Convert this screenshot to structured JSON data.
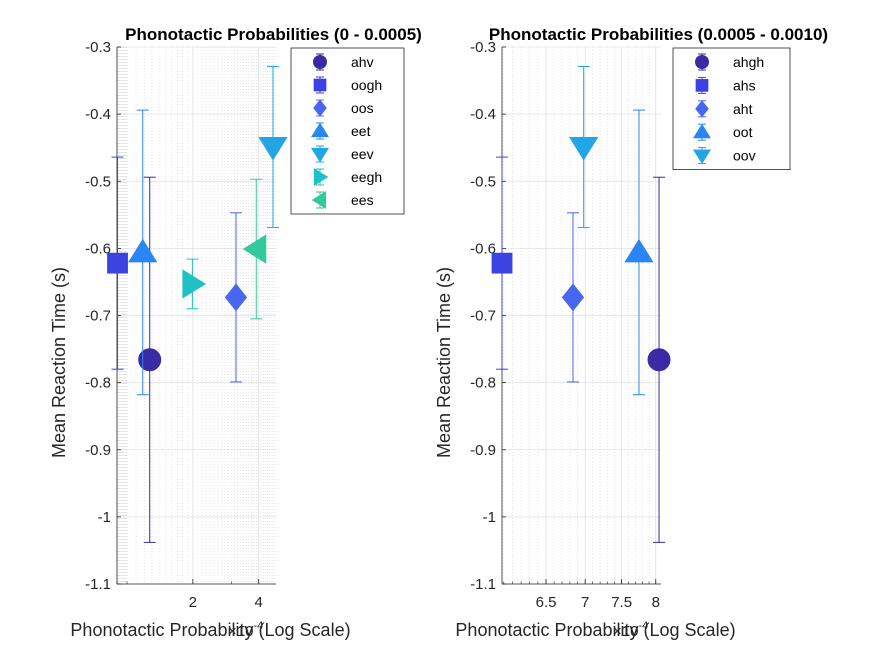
{
  "chart_data": [
    {
      "type": "scatter",
      "title": "Phonotactic Probabilities (0 - 0.0005)",
      "xlabel": "Phonotactic Probability (Log Scale)",
      "ylabel": "Mean Reaction Time (s)",
      "xscale": "log",
      "x_exponent_label": "×10",
      "x_exponent": "-4",
      "xlim": [
        9e-05,
        0.00048
      ],
      "ylim": [
        -1.1,
        -0.3
      ],
      "xticks": [
        0.0002,
        0.0004
      ],
      "xtick_labels": [
        "2",
        "4"
      ],
      "yticks": [
        -1.1,
        -1.0,
        -0.9,
        -0.8,
        -0.7,
        -0.6,
        -0.5,
        -0.4,
        -0.3
      ],
      "ytick_labels": [
        "-1.1",
        "-1",
        "-0.9",
        "-0.8",
        "-0.7",
        "-0.6",
        "-0.5",
        "-0.4",
        "-0.3"
      ],
      "grid": true,
      "legend_position": "top-right",
      "series": [
        {
          "name": "ahv",
          "marker": "circle",
          "color": "#3a2aa3",
          "x": 0.000127,
          "y": -0.766,
          "err": 0.272
        },
        {
          "name": "oogh",
          "marker": "square",
          "color": "#3b43e0",
          "x": 9.05e-05,
          "y": -0.622,
          "err": 0.158
        },
        {
          "name": "oos",
          "marker": "diamond",
          "color": "#4767f0",
          "x": 0.000315,
          "y": -0.673,
          "err": 0.126
        },
        {
          "name": "eet",
          "marker": "triangle-up",
          "color": "#2b86f5",
          "x": 0.000118,
          "y": -0.606,
          "err": 0.212
        },
        {
          "name": "eev",
          "marker": "triangle-down",
          "color": "#22a5e5",
          "x": 0.000465,
          "y": -0.449,
          "err": 0.12
        },
        {
          "name": "eegh",
          "marker": "triangle-right",
          "color": "#1fc1c6",
          "x": 0.000199,
          "y": -0.653,
          "err": 0.037
        },
        {
          "name": "ees",
          "marker": "triangle-left",
          "color": "#34c99a",
          "x": 0.00039,
          "y": -0.601,
          "err": 0.104
        }
      ]
    },
    {
      "type": "scatter",
      "title": "Phonotactic Probabilities (0.0005 - 0.0010)",
      "xlabel": "Phonotactic Probability (Log Scale)",
      "ylabel": "Mean Reaction Time (s)",
      "xscale": "log",
      "x_exponent_label": "×10",
      "x_exponent": "-4",
      "xlim": [
        0.000598,
        0.000808
      ],
      "ylim": [
        -1.1,
        -0.3
      ],
      "xticks": [
        0.00065,
        0.0007,
        0.00075,
        0.0008
      ],
      "xtick_labels": [
        "6.5",
        "7",
        "7.5",
        "8"
      ],
      "yticks": [
        -1.1,
        -1.0,
        -0.9,
        -0.8,
        -0.7,
        -0.6,
        -0.5,
        -0.4,
        -0.3
      ],
      "ytick_labels": [
        "-1.1",
        "-1",
        "-0.9",
        "-0.8",
        "-0.7",
        "-0.6",
        "-0.5",
        "-0.4",
        "-0.3"
      ],
      "grid": true,
      "legend_position": "top-right",
      "series": [
        {
          "name": "ahgh",
          "marker": "circle",
          "color": "#3a2aa3",
          "x": 0.000805,
          "y": -0.766,
          "err": 0.272
        },
        {
          "name": "ahs",
          "marker": "square",
          "color": "#3b43e0",
          "x": 0.000598,
          "y": -0.622,
          "err": 0.158
        },
        {
          "name": "aht",
          "marker": "diamond",
          "color": "#4767f0",
          "x": 0.000684,
          "y": -0.673,
          "err": 0.126
        },
        {
          "name": "oot",
          "marker": "triangle-up",
          "color": "#2b86f5",
          "x": 0.000775,
          "y": -0.606,
          "err": 0.212
        },
        {
          "name": "oov",
          "marker": "triangle-down",
          "color": "#22a5e5",
          "x": 0.000698,
          "y": -0.449,
          "err": 0.12
        }
      ]
    }
  ]
}
